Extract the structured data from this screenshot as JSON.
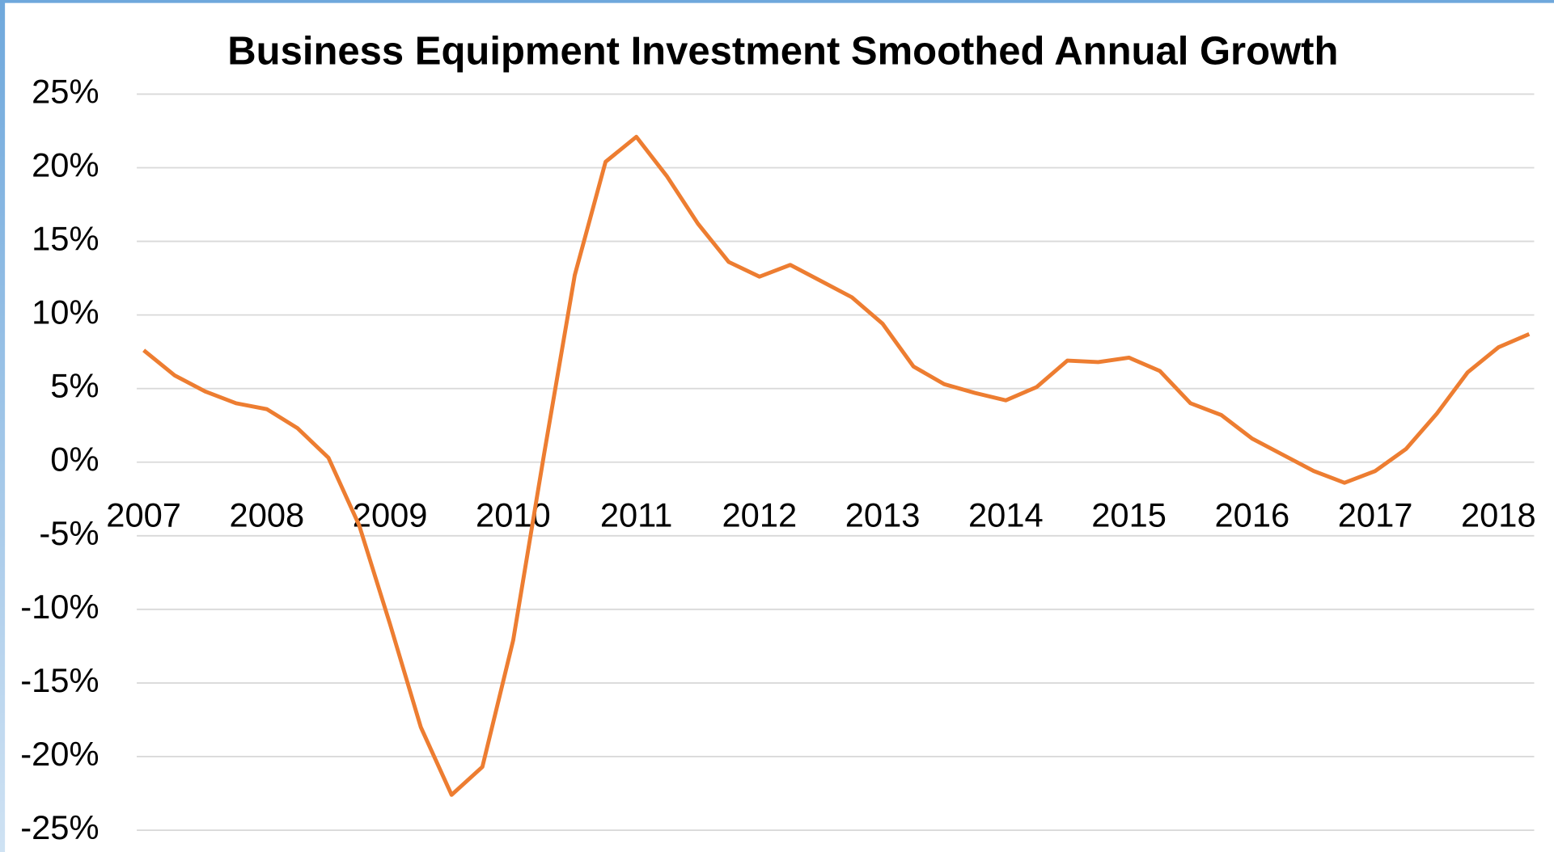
{
  "chart_data": {
    "type": "line",
    "title": "Business Equipment Investment Smoothed Annual Growth",
    "categories": [
      "2007",
      null,
      null,
      null,
      "2008",
      null,
      null,
      null,
      "2009",
      null,
      null,
      null,
      "2010",
      null,
      null,
      null,
      "2011",
      null,
      null,
      null,
      "2012",
      null,
      null,
      null,
      "2013",
      null,
      null,
      null,
      "2014",
      null,
      null,
      null,
      "2015",
      null,
      null,
      null,
      "2016",
      null,
      null,
      null,
      "2017",
      null,
      null,
      null,
      "2018",
      null
    ],
    "series": [
      {
        "name": "Business Equipment Investment",
        "color": "#ed7d31",
        "values": [
          7.6,
          5.9,
          4.8,
          4.0,
          3.6,
          2.3,
          0.3,
          -4.3,
          -11.0,
          -18.0,
          -22.6,
          -20.7,
          -12.1,
          0.5,
          12.7,
          20.4,
          22.1,
          19.4,
          16.2,
          13.6,
          12.6,
          13.4,
          12.3,
          11.2,
          9.4,
          6.5,
          5.3,
          4.7,
          4.2,
          5.1,
          6.9,
          6.8,
          7.1,
          6.2,
          4.0,
          3.2,
          1.6,
          0.5,
          -0.6,
          -1.4,
          -0.6,
          0.9,
          3.3,
          6.1,
          7.8,
          8.7
        ]
      }
    ],
    "ylim": [
      -25,
      25
    ],
    "yticks": [
      {
        "value": 25,
        "label": "25%"
      },
      {
        "value": 20,
        "label": "20%"
      },
      {
        "value": 15,
        "label": "15%"
      },
      {
        "value": 10,
        "label": "10%"
      },
      {
        "value": 5,
        "label": "5%"
      },
      {
        "value": 0,
        "label": "0%"
      },
      {
        "value": -5,
        "label": "-5%"
      },
      {
        "value": -10,
        "label": "-10%"
      },
      {
        "value": -15,
        "label": "-15%"
      },
      {
        "value": -20,
        "label": "-20%"
      },
      {
        "value": -25,
        "label": "-25%"
      }
    ],
    "grid": true
  }
}
